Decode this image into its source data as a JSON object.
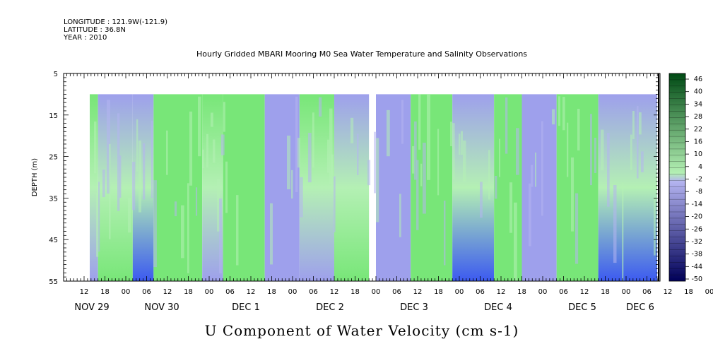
{
  "header": {
    "longitude": "LONGITUDE : 121.9W(-121.9)",
    "latitude": "LATITUDE : 36.8N",
    "year": "YEAR : 2010",
    "title": "Hourly Gridded MBARI Mooring M0 Sea Water Temperature and Salinity Observations"
  },
  "chart_data": {
    "type": "heatmap",
    "title": "Hourly Gridded MBARI Mooring M0 Sea Water Temperature and Salinity Observations",
    "xlabel": "U Component of Water Velocity (cm s-1)",
    "ylabel": "DEPTH (m)",
    "ylim": [
      55,
      5
    ],
    "y_ticks": [
      5,
      15,
      25,
      35,
      45,
      55
    ],
    "data_depth_range": [
      10,
      55
    ],
    "x_hour_ticks": [
      "12",
      "18",
      "00",
      "06",
      "12",
      "18",
      "00",
      "06",
      "12",
      "18",
      "00",
      "06",
      "12",
      "18",
      "00",
      "06",
      "12",
      "18",
      "00",
      "06",
      "12",
      "18",
      "00",
      "06",
      "12",
      "18",
      "00",
      "06",
      "12",
      "18",
      "00",
      "06"
    ],
    "x_day_labels": [
      "NOV 29",
      "NOV 30",
      "DEC  1",
      "DEC  2",
      "DEC  3",
      "DEC  4",
      "DEC  5",
      "DEC  6"
    ],
    "colorbar": {
      "labels": [
        "46",
        "40",
        "34",
        "28",
        "22",
        "16",
        "10",
        "4",
        "-2",
        "-8",
        "-14",
        "-20",
        "-26",
        "-32",
        "-38",
        "-44",
        "-50"
      ],
      "range": [
        -50,
        50
      ],
      "interval": 3
    },
    "colors": {
      "positive_light": "#b4f0b4",
      "positive_mid": "#78e678",
      "positive_strong": "#2ad44c",
      "negative_light": "#b4b4f0",
      "negative_mid": "#9ea0ec",
      "negative_strong": "#3c5af0",
      "colorbar_top": "#004a14",
      "colorbar_bottom": "#000058"
    },
    "bands": [
      {
        "from": "NOV 29 12",
        "to": "NOV 29 16",
        "surface": "positive",
        "bottom": "negative"
      },
      {
        "from": "NOV 29 16",
        "to": "NOV 30 02",
        "surface": "negative",
        "bottom": "positive"
      },
      {
        "from": "NOV 30 02",
        "to": "NOV 30 08",
        "surface": "negative",
        "bottom": "negative_strong"
      },
      {
        "from": "NOV 30 08",
        "to": "NOV 30 22",
        "surface": "positive",
        "bottom": "positive"
      },
      {
        "from": "NOV 30 22",
        "to": "DEC 1 04",
        "surface": "positive",
        "bottom": "negative"
      },
      {
        "from": "DEC 1 04",
        "to": "DEC 1 16",
        "surface": "positive",
        "bottom": "positive"
      },
      {
        "from": "DEC 1 16",
        "to": "DEC 2 02",
        "surface": "negative",
        "bottom": "negative"
      },
      {
        "from": "DEC 2 02",
        "to": "DEC 2 12",
        "surface": "positive",
        "bottom": "negative"
      },
      {
        "from": "DEC 2 12",
        "to": "DEC 2 22",
        "surface": "negative",
        "bottom": "positive"
      },
      {
        "from": "DEC 3 00",
        "to": "DEC 3 10",
        "surface": "negative",
        "bottom": "negative"
      },
      {
        "from": "DEC 3 10",
        "to": "DEC 3 22",
        "surface": "positive",
        "bottom": "positive"
      },
      {
        "from": "DEC 3 22",
        "to": "DEC 4 10",
        "surface": "negative",
        "bottom": "negative_strong"
      },
      {
        "from": "DEC 4 10",
        "to": "DEC 4 18",
        "surface": "positive",
        "bottom": "positive"
      },
      {
        "from": "DEC 4 18",
        "to": "DEC 5 04",
        "surface": "negative",
        "bottom": "negative"
      },
      {
        "from": "DEC 5 04",
        "to": "DEC 5 16",
        "surface": "positive",
        "bottom": "positive"
      },
      {
        "from": "DEC 5 16",
        "to": "DEC 6 10",
        "surface": "negative",
        "bottom": "negative_strong"
      }
    ]
  }
}
